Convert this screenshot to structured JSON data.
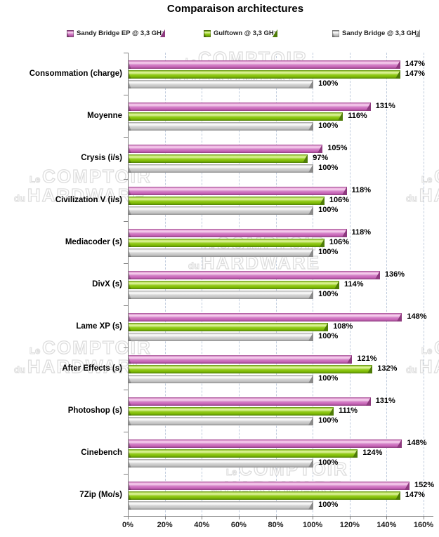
{
  "title": "Comparaison architectures",
  "legend": {
    "items": [
      {
        "label": "Sandy Bridge EP @ 3,3 GHz",
        "color": "#c765b7"
      },
      {
        "label": "Gulftown @ 3,3 GHz",
        "color": "#7eba04"
      },
      {
        "label": "Sandy Bridge @ 3,3 GHz",
        "color": "#c3c3c3"
      }
    ]
  },
  "watermark": {
    "line1_small": "Le",
    "line1_big": "COMPTOIR",
    "line2_small": "du",
    "line2_big": "HARDWARE"
  },
  "colors": {
    "series_magenta": "#c765b7",
    "series_green": "#7eba04",
    "series_gray": "#c3c3c3",
    "gridline": "#bfcbdd",
    "axis": "#808080",
    "text": "#000000"
  },
  "chart_data": {
    "type": "bar",
    "orientation": "horizontal",
    "title": "Comparaison architectures",
    "categories": [
      "Consommation (charge)",
      "Moyenne",
      "Crysis (i/s)",
      "Civilization V (i/s)",
      "Mediacoder (s)",
      "DivX (s)",
      "Lame XP (s)",
      "After Effects (s)",
      "Photoshop (s)",
      "Cinebench",
      "7Zip (Mo/s)"
    ],
    "series": [
      {
        "name": "Sandy Bridge EP @ 3,3 GHz",
        "color": "#c765b7",
        "values": [
          147,
          131,
          105,
          118,
          118,
          136,
          148,
          121,
          131,
          148,
          152
        ]
      },
      {
        "name": "Gulftown @ 3,3 GHz",
        "color": "#7eba04",
        "values": [
          147,
          116,
          97,
          106,
          106,
          114,
          108,
          132,
          111,
          124,
          147
        ]
      },
      {
        "name": "Sandy Bridge @ 3,3 GHz",
        "color": "#c3c3c3",
        "values": [
          100,
          100,
          100,
          100,
          100,
          100,
          100,
          100,
          100,
          100,
          100
        ]
      }
    ],
    "value_suffix": "%",
    "xlim": [
      0,
      160
    ],
    "x_ticks": [
      "0%",
      "20%",
      "40%",
      "60%",
      "80%",
      "100%",
      "120%",
      "140%",
      "160%"
    ],
    "grid": "vertical-dashed",
    "legend_position": "top",
    "data_labels": true
  }
}
